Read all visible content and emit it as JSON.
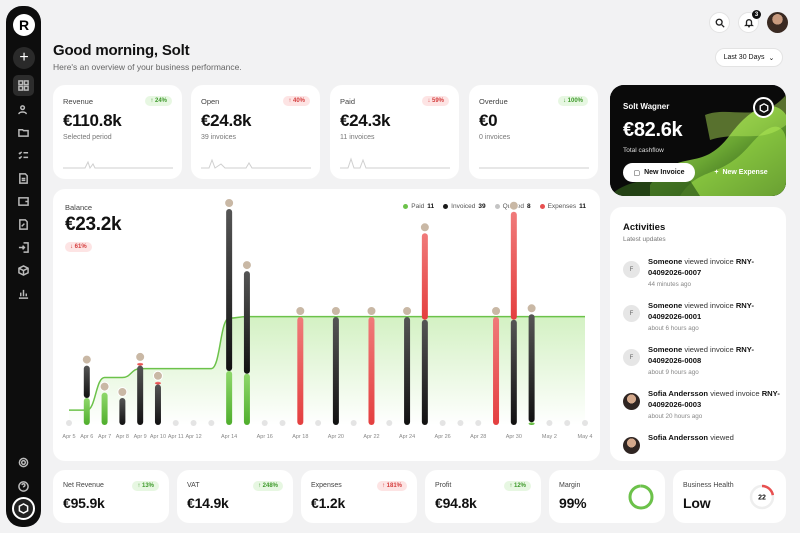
{
  "header": {
    "greeting": "Good morning, Solt",
    "subtitle": "Here's an overview of your business performance.",
    "notifications": "3",
    "range": "Last 30 Days"
  },
  "nav_icons": [
    "grid-icon",
    "users-icon",
    "folder-icon",
    "checklist-icon",
    "document-icon",
    "wallet-icon",
    "edit-icon",
    "login-icon",
    "box-icon",
    "chart-icon"
  ],
  "stats": [
    {
      "label": "Revenue",
      "value": "€110.8k",
      "sub": "Selected period",
      "change": "↑ 24%",
      "trend": "up"
    },
    {
      "label": "Open",
      "value": "€24.8k",
      "sub": "39 invoices",
      "change": "↑ 40%",
      "trend": "down"
    },
    {
      "label": "Paid",
      "value": "€24.3k",
      "sub": "11 invoices",
      "change": "↓ 59%",
      "trend": "down"
    },
    {
      "label": "Overdue",
      "value": "€0",
      "sub": "0 invoices",
      "change": "↓ 100%",
      "trend": "up"
    }
  ],
  "hero": {
    "name": "Solt Wagner",
    "amount": "€82.6k",
    "sub": "Total cashflow",
    "btn_invoice": "New Invoice",
    "btn_expense": "New Expense"
  },
  "balance": {
    "label": "Balance",
    "value": "€23.2k",
    "change": "↓ 61%"
  },
  "legend": [
    {
      "name": "Paid",
      "count": "11",
      "color": "#6cc24a"
    },
    {
      "name": "Invoiced",
      "count": "39",
      "color": "#1a1a1a"
    },
    {
      "name": "Quoted",
      "count": "8",
      "color": "#c4c4c4"
    },
    {
      "name": "Expenses",
      "count": "11",
      "color": "#e85050"
    }
  ],
  "chart_data": {
    "type": "bar",
    "categories": [
      "Apr 5",
      "Apr 6",
      "Apr 7",
      "Apr 8",
      "Apr 9",
      "Apr 10",
      "Apr 11",
      "Apr 12",
      "Apr 13",
      "Apr 14",
      "Apr 15",
      "Apr 16",
      "Apr 17",
      "Apr 18",
      "Apr 19",
      "Apr 20",
      "Apr 21",
      "Apr 22",
      "Apr 23",
      "Apr 24",
      "Apr 25",
      "Apr 26",
      "Apr 27",
      "Apr 28",
      "Apr 29",
      "Apr 30",
      "May 1",
      "May 2",
      "May 3",
      "May 4"
    ],
    "x_ticks": [
      "Apr 5",
      "Apr 6",
      "Apr 7",
      "Apr 8",
      "Apr 9",
      "Apr 10",
      "Apr 11",
      "Apr 12",
      "Apr 14",
      "Apr 16",
      "Apr 18",
      "Apr 20",
      "Apr 22",
      "Apr 24",
      "Apr 26",
      "Apr 28",
      "Apr 30",
      "May 2",
      "May 4"
    ],
    "series": [
      {
        "name": "Paid",
        "values": [
          0,
          0.5,
          0.6,
          0,
          0,
          0,
          0,
          0,
          0,
          1,
          0.95,
          0,
          0,
          0,
          0,
          0,
          0,
          0,
          0,
          0,
          0,
          0,
          0,
          0,
          0,
          0,
          0.05,
          0,
          0,
          0
        ]
      },
      {
        "name": "Invoiced",
        "values": [
          0,
          0.6,
          0,
          0.5,
          1.1,
          0.75,
          0,
          0,
          0,
          3.0,
          1.9,
          0,
          0,
          0,
          0,
          2.0,
          0,
          0,
          0,
          2.0,
          1.95,
          0,
          0,
          0,
          0,
          1.95,
          2.0,
          0,
          0,
          0
        ]
      },
      {
        "name": "Expenses",
        "values": [
          0,
          0,
          0,
          0,
          0.05,
          0.05,
          0,
          0,
          0,
          0,
          0,
          0,
          0,
          2.0,
          0,
          0,
          0,
          2.0,
          0,
          0,
          1.6,
          0,
          0,
          0,
          2.0,
          2.0,
          0,
          0,
          0,
          0
        ]
      }
    ],
    "badges": [
      "+4",
      "+3",
      "+1",
      "+16",
      "+2",
      "+1",
      "+5"
    ],
    "balance_line": [
      0.5,
      0.5,
      1.6,
      1.6,
      1.9,
      1.9,
      1.9,
      1.9,
      1.9,
      3.6,
      3.65,
      3.65,
      3.65,
      3.65,
      3.65,
      3.65,
      3.65,
      3.65,
      3.65,
      3.65,
      3.65,
      3.65,
      3.65,
      3.65,
      3.65,
      3.65,
      3.65,
      3.65,
      3.65,
      3.65
    ]
  },
  "activities": {
    "title": "Activities",
    "sub": "Latest updates",
    "items": [
      {
        "who": "Someone",
        "action": "viewed invoice",
        "ref": "RNY-04092026-0007",
        "time": "44 minutes ago",
        "avatar": "F"
      },
      {
        "who": "Someone",
        "action": "viewed invoice",
        "ref": "RNY-04092026-0001",
        "time": "about 6 hours ago",
        "avatar": "F"
      },
      {
        "who": "Someone",
        "action": "viewed invoice",
        "ref": "RNY-04092026-0008",
        "time": "about 9 hours ago",
        "avatar": "F"
      },
      {
        "who": "Sofia Andersson",
        "action": "viewed invoice",
        "ref": "RNY-04092026-0003",
        "time": "about 20 hours ago",
        "avatar": ""
      },
      {
        "who": "Sofia Andersson",
        "action": "viewed",
        "ref": "",
        "time": "",
        "avatar": ""
      }
    ]
  },
  "bottom": [
    {
      "label": "Net Revenue",
      "value": "€95.9k",
      "change": "↑ 13%",
      "trend": "up"
    },
    {
      "label": "VAT",
      "value": "€14.9k",
      "change": "↑ 248%",
      "trend": "up"
    },
    {
      "label": "Expenses",
      "value": "€1.2k",
      "change": "↑ 181%",
      "trend": "down"
    },
    {
      "label": "Profit",
      "value": "€94.8k",
      "change": "↑ 12%",
      "trend": "up"
    },
    {
      "label": "Margin",
      "value": "99%",
      "gauge": 99
    },
    {
      "label": "Business Health",
      "value": "Low",
      "score": "22"
    }
  ]
}
